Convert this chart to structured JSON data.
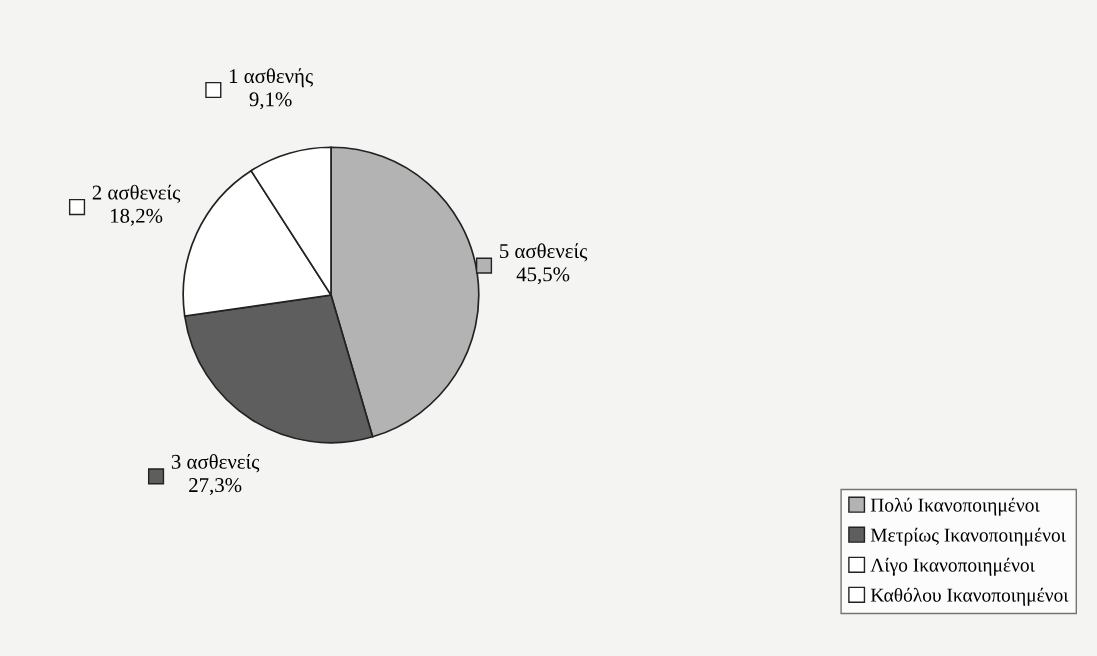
{
  "chart_data": {
    "type": "pie",
    "categories": [
      "Πολύ Ικανοποιημένοι",
      "Μετρίως Ικανοποιημένοι",
      "Λίγο Ικανοποιημένοι",
      "Καθόλου Ικανοποιημένοι"
    ],
    "values": [
      45.5,
      27.3,
      18.2,
      9.1
    ],
    "colors": [
      "#b3b3b3",
      "#5e5e5e",
      "#ffffff",
      "#ffffff"
    ],
    "value_labels": [
      "5 ασθενείς\n45,5%",
      "3 ασθενείς\n27,3%",
      "2 ασθενείς\n18,2%",
      "1 ασθενής\n9,1%"
    ],
    "legend": "bottom right"
  }
}
